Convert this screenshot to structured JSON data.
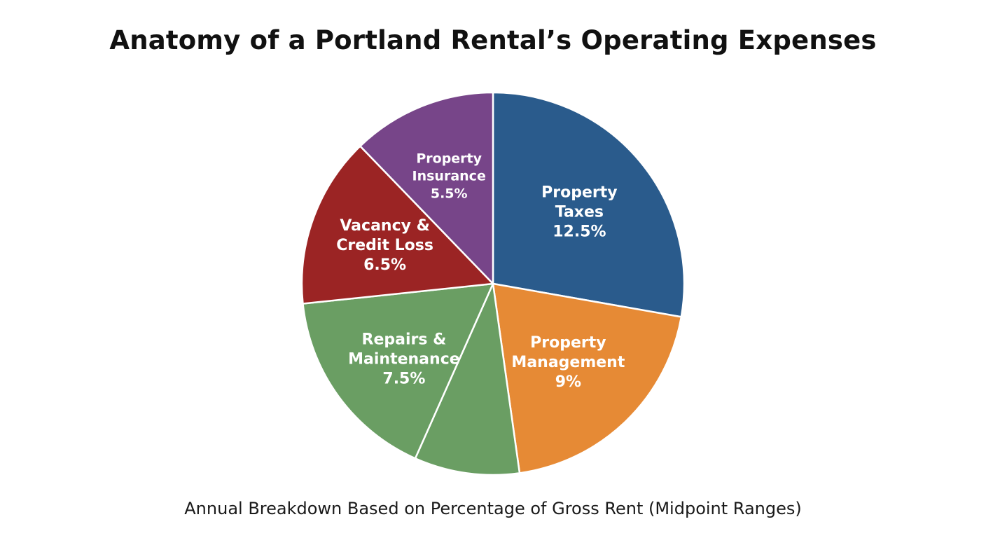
{
  "chart_data": {
    "type": "pie",
    "title": "Anatomy of a Portland Rental’s Operating Expenses",
    "subtitle": "Annual Breakdown Based on Percentage of Gross Rent (Midpoint Ranges)",
    "slices": [
      {
        "label_lines": [
          "Property",
          "Taxes",
          "12.5%"
        ],
        "value": 12.5,
        "color": "#2a5b8c"
      },
      {
        "label_lines": [
          "Property",
          "Management",
          "9%"
        ],
        "value": 9,
        "color": "#e68a35"
      },
      {
        "label_lines": [],
        "value": 4,
        "color": "#6a9e63"
      },
      {
        "label_lines": [
          "Repairs &",
          "Maintenance",
          "7.5%"
        ],
        "value": 7.5,
        "color": "#6a9e63"
      },
      {
        "label_lines": [
          "Vacancy &",
          "Credit Loss",
          "6.5%"
        ],
        "value": 6.5,
        "color": "#9b2424"
      },
      {
        "label_lines": [
          "Property",
          "Insurance",
          "5.5%"
        ],
        "value": 5.5,
        "color": "#774589"
      }
    ],
    "start": "12 o'clock",
    "direction": "clockwise"
  }
}
